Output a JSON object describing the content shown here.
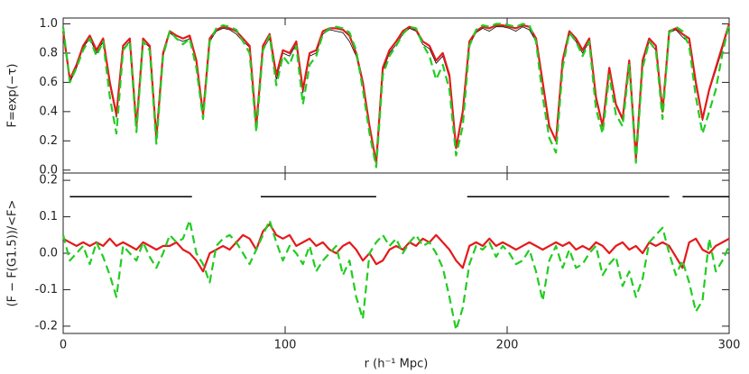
{
  "chart_data": [
    {
      "type": "line",
      "ylabel": "F=exp(−τ)",
      "x": [
        0,
        3,
        6,
        9,
        12,
        15,
        18,
        21,
        24,
        27,
        30,
        33,
        36,
        39,
        42,
        45,
        48,
        51,
        54,
        57,
        60,
        63,
        66,
        69,
        72,
        75,
        78,
        81,
        84,
        87,
        90,
        93,
        96,
        99,
        102,
        105,
        108,
        111,
        114,
        117,
        120,
        123,
        126,
        129,
        132,
        135,
        138,
        141,
        144,
        147,
        150,
        153,
        156,
        159,
        162,
        165,
        168,
        171,
        174,
        177,
        180,
        183,
        186,
        189,
        192,
        195,
        198,
        201,
        204,
        207,
        210,
        213,
        216,
        219,
        222,
        225,
        228,
        231,
        234,
        237,
        240,
        243,
        246,
        249,
        252,
        255,
        258,
        261,
        264,
        267,
        270,
        273,
        276,
        279,
        282,
        285,
        288,
        291,
        294,
        297,
        300
      ],
      "xlim": [
        0,
        300
      ],
      "ylim": [
        -0.02,
        1.04
      ],
      "yticks": [
        {
          "value": 0,
          "label": "0.0"
        },
        0.2,
        0.4,
        0.6,
        0.8,
        {
          "value": 1,
          "label": "1.0"
        }
      ],
      "series": [
        {
          "color": "#000000",
          "width": 0.8,
          "dashed": false,
          "values": [
            0.94,
            0.6,
            0.7,
            0.84,
            0.9,
            0.8,
            0.88,
            0.58,
            0.36,
            0.83,
            0.88,
            0.3,
            0.88,
            0.84,
            0.22,
            0.78,
            0.94,
            0.9,
            0.88,
            0.9,
            0.74,
            0.37,
            0.88,
            0.95,
            0.97,
            0.96,
            0.93,
            0.88,
            0.84,
            0.29,
            0.83,
            0.9,
            0.62,
            0.8,
            0.78,
            0.86,
            0.53,
            0.78,
            0.8,
            0.93,
            0.96,
            0.95,
            0.94,
            0.88,
            0.78,
            0.58,
            0.3,
            0.06,
            0.68,
            0.8,
            0.86,
            0.93,
            0.97,
            0.95,
            0.86,
            0.83,
            0.73,
            0.78,
            0.63,
            0.15,
            0.38,
            0.86,
            0.94,
            0.97,
            0.95,
            0.98,
            0.98,
            0.97,
            0.95,
            0.98,
            0.96,
            0.88,
            0.58,
            0.3,
            0.2,
            0.73,
            0.93,
            0.88,
            0.8,
            0.88,
            0.48,
            0.3,
            0.68,
            0.44,
            0.34,
            0.73,
            0.08,
            0.73,
            0.88,
            0.82,
            0.4,
            0.94,
            0.96,
            0.91,
            0.87,
            0.58,
            0.34,
            0.54,
            0.68,
            0.83,
            0.99
          ]
        },
        {
          "color": "#e41a1c",
          "width": 2.2,
          "dashed": false,
          "values": [
            0.95,
            0.62,
            0.72,
            0.85,
            0.92,
            0.82,
            0.9,
            0.6,
            0.38,
            0.85,
            0.9,
            0.3,
            0.9,
            0.85,
            0.22,
            0.8,
            0.95,
            0.92,
            0.9,
            0.92,
            0.75,
            0.38,
            0.9,
            0.96,
            0.98,
            0.97,
            0.95,
            0.9,
            0.85,
            0.3,
            0.85,
            0.93,
            0.65,
            0.82,
            0.8,
            0.88,
            0.55,
            0.8,
            0.82,
            0.95,
            0.97,
            0.97,
            0.96,
            0.92,
            0.8,
            0.6,
            0.3,
            0.05,
            0.7,
            0.82,
            0.88,
            0.95,
            0.98,
            0.96,
            0.88,
            0.85,
            0.75,
            0.8,
            0.65,
            0.15,
            0.4,
            0.88,
            0.95,
            0.98,
            0.97,
            0.99,
            0.99,
            0.98,
            0.97,
            0.99,
            0.98,
            0.9,
            0.6,
            0.3,
            0.2,
            0.75,
            0.95,
            0.9,
            0.82,
            0.9,
            0.5,
            0.3,
            0.7,
            0.45,
            0.35,
            0.75,
            0.08,
            0.75,
            0.9,
            0.85,
            0.4,
            0.95,
            0.97,
            0.93,
            0.9,
            0.6,
            0.35,
            0.55,
            0.7,
            0.85,
            1.0
          ]
        },
        {
          "color": "#22cc22",
          "width": 2.2,
          "dashed": true,
          "values": [
            0.98,
            0.6,
            0.7,
            0.82,
            0.9,
            0.78,
            0.88,
            0.5,
            0.25,
            0.82,
            0.88,
            0.26,
            0.88,
            0.82,
            0.18,
            0.78,
            0.95,
            0.9,
            0.86,
            0.9,
            0.7,
            0.35,
            0.88,
            0.97,
            0.99,
            0.98,
            0.96,
            0.88,
            0.8,
            0.26,
            0.82,
            0.92,
            0.58,
            0.78,
            0.72,
            0.85,
            0.45,
            0.72,
            0.78,
            0.93,
            0.97,
            0.98,
            0.97,
            0.94,
            0.82,
            0.55,
            0.25,
            0.02,
            0.65,
            0.78,
            0.85,
            0.93,
            0.98,
            0.97,
            0.86,
            0.78,
            0.62,
            0.72,
            0.55,
            0.1,
            0.3,
            0.85,
            0.96,
            0.99,
            0.98,
            1.0,
            1.0,
            0.99,
            0.98,
            1.0,
            0.99,
            0.88,
            0.5,
            0.22,
            0.12,
            0.7,
            0.94,
            0.88,
            0.78,
            0.88,
            0.42,
            0.25,
            0.65,
            0.38,
            0.3,
            0.72,
            0.05,
            0.7,
            0.88,
            0.82,
            0.35,
            0.94,
            0.98,
            0.95,
            0.85,
            0.5,
            0.25,
            0.4,
            0.55,
            0.8,
            1.0
          ]
        }
      ]
    },
    {
      "type": "line",
      "ylabel": "(F − F(G1.5))/<F>",
      "xlabel": "r (h⁻¹ Mpc)",
      "x": [
        0,
        3,
        6,
        9,
        12,
        15,
        18,
        21,
        24,
        27,
        30,
        33,
        36,
        39,
        42,
        45,
        48,
        51,
        54,
        57,
        60,
        63,
        66,
        69,
        72,
        75,
        78,
        81,
        84,
        87,
        90,
        93,
        96,
        99,
        102,
        105,
        108,
        111,
        114,
        117,
        120,
        123,
        126,
        129,
        132,
        135,
        138,
        141,
        144,
        147,
        150,
        153,
        156,
        159,
        162,
        165,
        168,
        171,
        174,
        177,
        180,
        183,
        186,
        189,
        192,
        195,
        198,
        201,
        204,
        207,
        210,
        213,
        216,
        219,
        222,
        225,
        228,
        231,
        234,
        237,
        240,
        243,
        246,
        249,
        252,
        255,
        258,
        261,
        264,
        267,
        270,
        273,
        276,
        279,
        282,
        285,
        288,
        291,
        294,
        297,
        300
      ],
      "xlim": [
        0,
        300
      ],
      "xticks": [
        0,
        100,
        200,
        300
      ],
      "ylim": [
        -0.22,
        0.22
      ],
      "yticks": [
        -0.2,
        -0.1,
        {
          "value": 0,
          "label": "0.0"
        },
        0.1,
        0.2
      ],
      "segments": [
        [
          3,
          58
        ],
        [
          89,
          141
        ],
        [
          182,
          273
        ],
        [
          279,
          300
        ]
      ],
      "segment_y": 0.155,
      "segment_color": "#000000",
      "series": [
        {
          "color": "#e41a1c",
          "width": 2.2,
          "dashed": false,
          "values": [
            0.04,
            0.03,
            0.02,
            0.03,
            0.02,
            0.03,
            0.02,
            0.04,
            0.02,
            0.03,
            0.02,
            0.01,
            0.03,
            0.02,
            0.01,
            0.02,
            0.02,
            0.03,
            0.01,
            0.0,
            -0.02,
            -0.05,
            0.0,
            0.01,
            0.02,
            0.01,
            0.03,
            0.05,
            0.04,
            0.01,
            0.06,
            0.08,
            0.05,
            0.04,
            0.05,
            0.02,
            0.03,
            0.04,
            0.02,
            0.03,
            0.01,
            0.0,
            0.02,
            0.03,
            0.01,
            -0.02,
            0.0,
            -0.03,
            -0.02,
            0.01,
            0.02,
            0.01,
            0.03,
            0.02,
            0.04,
            0.03,
            0.05,
            0.03,
            0.01,
            -0.02,
            -0.04,
            0.02,
            0.03,
            0.02,
            0.04,
            0.02,
            0.03,
            0.02,
            0.01,
            0.02,
            0.03,
            0.02,
            0.01,
            0.02,
            0.03,
            0.02,
            0.03,
            0.01,
            0.02,
            0.01,
            0.03,
            0.02,
            0.0,
            0.02,
            0.03,
            0.01,
            0.02,
            0.0,
            0.03,
            0.02,
            0.03,
            0.02,
            -0.01,
            -0.04,
            0.03,
            0.04,
            0.01,
            0.0,
            0.02,
            0.03,
            0.04
          ]
        },
        {
          "color": "#22cc22",
          "width": 2.2,
          "dashed": true,
          "values": [
            0.05,
            -0.02,
            0.0,
            0.02,
            -0.03,
            0.03,
            -0.01,
            -0.06,
            -0.12,
            0.02,
            0.0,
            -0.02,
            0.03,
            -0.01,
            -0.04,
            0.0,
            0.05,
            0.03,
            0.04,
            0.09,
            0.0,
            -0.03,
            -0.08,
            0.02,
            0.04,
            0.05,
            0.03,
            0.0,
            -0.03,
            0.01,
            0.05,
            0.09,
            0.03,
            -0.02,
            0.02,
            0.0,
            -0.03,
            0.02,
            -0.05,
            -0.02,
            0.0,
            0.02,
            -0.06,
            -0.02,
            -0.12,
            -0.18,
            0.0,
            0.03,
            0.05,
            0.02,
            0.04,
            0.0,
            0.03,
            0.05,
            0.02,
            0.03,
            0.0,
            -0.04,
            -0.12,
            -0.21,
            -0.15,
            -0.03,
            0.02,
            0.01,
            0.03,
            -0.01,
            0.02,
            0.0,
            -0.03,
            -0.02,
            0.01,
            -0.05,
            -0.13,
            -0.02,
            0.02,
            -0.04,
            0.01,
            -0.04,
            -0.03,
            0.0,
            0.02,
            -0.06,
            -0.03,
            -0.01,
            -0.09,
            -0.05,
            -0.12,
            -0.07,
            0.03,
            0.05,
            0.07,
            0.0,
            -0.06,
            -0.02,
            -0.08,
            -0.16,
            -0.13,
            0.04,
            -0.05,
            -0.02,
            0.02
          ]
        }
      ]
    }
  ]
}
